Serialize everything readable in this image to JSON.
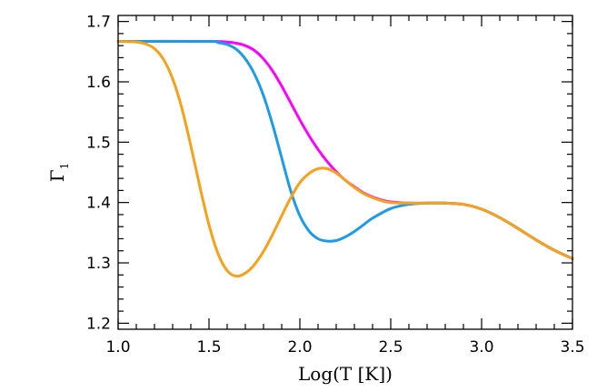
{
  "chart_data": {
    "type": "line",
    "title": "",
    "xlabel": "Log(T [K])",
    "ylabel": "Γ1",
    "xlim": [
      1.0,
      3.5
    ],
    "ylim": [
      1.19,
      1.71
    ],
    "xticks": [
      "1.0",
      "1.5",
      "2.0",
      "2.5",
      "3.0",
      "3.5"
    ],
    "yticks": [
      "1.2",
      "1.3",
      "1.4",
      "1.5",
      "1.6",
      "1.7"
    ],
    "grid": false,
    "legend": "none",
    "series": [
      {
        "color": "#ff00ff",
        "x": [
          1.0,
          1.5,
          1.6,
          1.65,
          1.7,
          1.75,
          1.8,
          1.85,
          1.9,
          1.95,
          2.0,
          2.05,
          2.1,
          2.15,
          2.2,
          2.25,
          2.3,
          2.35,
          2.4,
          2.45,
          2.5,
          2.6,
          2.7,
          2.8,
          2.9,
          3.0,
          3.1,
          3.2,
          3.3,
          3.4,
          3.5
        ],
        "y": [
          1.667,
          1.667,
          1.666,
          1.664,
          1.66,
          1.652,
          1.638,
          1.618,
          1.593,
          1.565,
          1.537,
          1.511,
          1.488,
          1.468,
          1.451,
          1.437,
          1.426,
          1.416,
          1.409,
          1.404,
          1.401,
          1.399,
          1.399,
          1.399,
          1.397,
          1.389,
          1.375,
          1.357,
          1.338,
          1.321,
          1.307
        ]
      },
      {
        "color": "#1e9be6",
        "x": [
          1.0,
          1.5,
          1.55,
          1.6,
          1.65,
          1.7,
          1.75,
          1.8,
          1.85,
          1.9,
          1.95,
          2.0,
          2.05,
          2.1,
          2.15,
          2.2,
          2.25,
          2.3,
          2.35,
          2.4,
          2.5,
          2.6,
          2.7,
          2.8,
          2.9,
          3.0,
          3.1,
          3.2,
          3.3,
          3.4,
          3.5
        ],
        "y": [
          1.667,
          1.667,
          1.665,
          1.662,
          1.654,
          1.638,
          1.613,
          1.577,
          1.529,
          1.474,
          1.419,
          1.378,
          1.353,
          1.34,
          1.336,
          1.337,
          1.343,
          1.352,
          1.363,
          1.374,
          1.39,
          1.397,
          1.399,
          1.399,
          1.397,
          1.389,
          1.375,
          1.357,
          1.338,
          1.321,
          1.307
        ]
      },
      {
        "color": "#f5a11c",
        "x": [
          1.0,
          1.1,
          1.15,
          1.2,
          1.25,
          1.3,
          1.35,
          1.4,
          1.45,
          1.5,
          1.55,
          1.6,
          1.65,
          1.7,
          1.75,
          1.8,
          1.85,
          1.9,
          1.95,
          2.0,
          2.05,
          2.1,
          2.15,
          2.2,
          2.25,
          2.3,
          2.35,
          2.4,
          2.45,
          2.5,
          2.6,
          2.7,
          2.8,
          2.9,
          3.0,
          3.1,
          3.2,
          3.3,
          3.4,
          3.5
        ],
        "y": [
          1.667,
          1.666,
          1.663,
          1.655,
          1.637,
          1.605,
          1.557,
          1.494,
          1.426,
          1.363,
          1.315,
          1.287,
          1.278,
          1.283,
          1.297,
          1.319,
          1.347,
          1.378,
          1.408,
          1.433,
          1.448,
          1.456,
          1.456,
          1.449,
          1.437,
          1.425,
          1.415,
          1.408,
          1.403,
          1.4,
          1.399,
          1.399,
          1.399,
          1.397,
          1.389,
          1.375,
          1.357,
          1.338,
          1.321,
          1.307
        ]
      }
    ]
  }
}
